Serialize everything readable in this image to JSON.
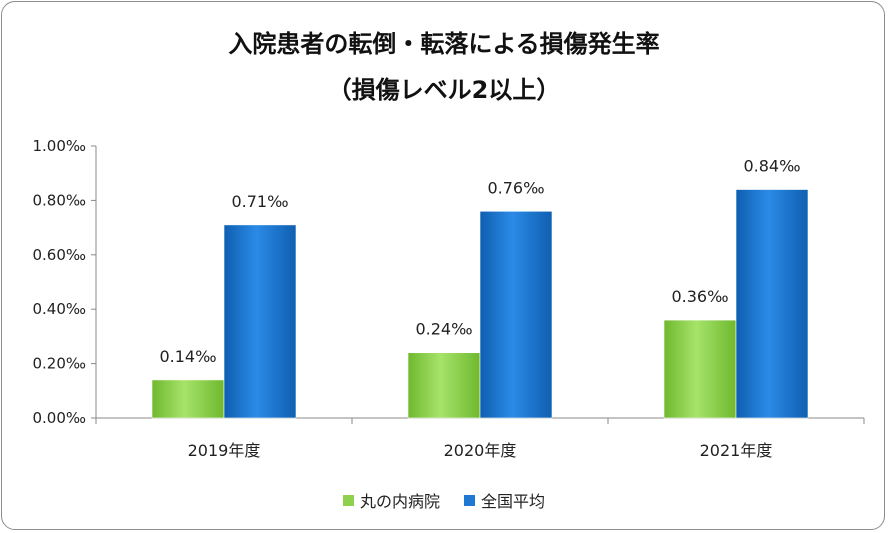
{
  "chart_data": {
    "type": "bar",
    "title": "入院患者の転倒・転落による損傷発生率",
    "subtitle": "（損傷レベル2以上）",
    "categories": [
      "2019年度",
      "2020年度",
      "2021年度"
    ],
    "series": [
      {
        "name": "丸の内病院",
        "values": [
          0.14,
          0.24,
          0.36
        ],
        "labels": [
          "0.14‰",
          "0.24‰",
          "0.36‰"
        ],
        "color": "#8fd14f"
      },
      {
        "name": "全国平均",
        "values": [
          0.71,
          0.76,
          0.84
        ],
        "labels": [
          "0.71‰",
          "0.76‰",
          "0.84‰"
        ],
        "color": "#1f78d1"
      }
    ],
    "ylim": [
      0,
      1.0
    ],
    "yticks": [
      "0.00‰",
      "0.20‰",
      "0.40‰",
      "0.60‰",
      "0.80‰",
      "1.00‰"
    ],
    "grid": false,
    "legend": "bottom"
  }
}
